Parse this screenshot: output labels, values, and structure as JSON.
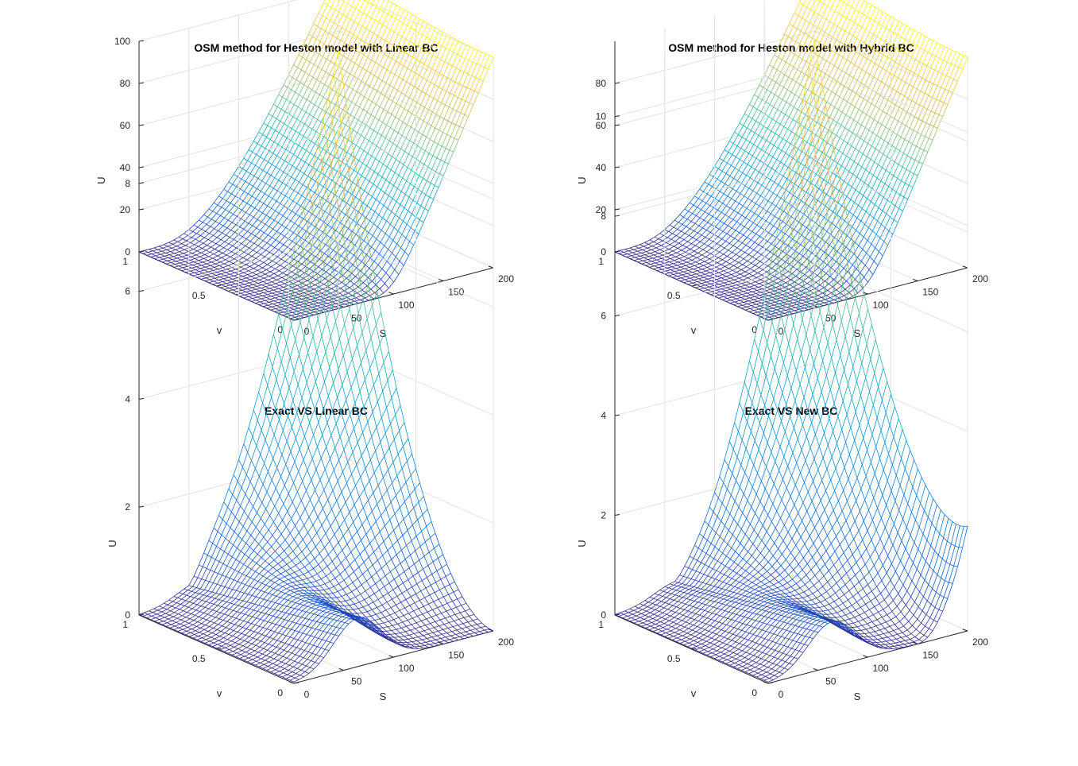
{
  "chart_data": [
    {
      "type": "surface",
      "title": "OSM method for Heston model with Linear BC",
      "xlabel": "S",
      "ylabel": "v",
      "zlabel": "U",
      "xlim": [
        0,
        200
      ],
      "ylim": [
        0,
        1
      ],
      "zlim": [
        0,
        100
      ],
      "xticks": [
        "0",
        "50",
        "100",
        "150",
        "200"
      ],
      "yticks": [
        "0",
        "0.5",
        "1"
      ],
      "zticks": [
        "0",
        "20",
        "40",
        "60",
        "80",
        "100"
      ],
      "z_max": 100,
      "z_shape": "price",
      "strike": 100,
      "grid": true,
      "colormap": "parula"
    },
    {
      "type": "surface",
      "title": "OSM method for Heston model with Hybrid BC",
      "xlabel": "S",
      "ylabel": "v",
      "zlabel": "U",
      "xlim": [
        0,
        200
      ],
      "ylim": [
        0,
        1
      ],
      "zlim": [
        0,
        100
      ],
      "xticks": [
        "0",
        "50",
        "100",
        "150",
        "200"
      ],
      "yticks": [
        "0",
        "0.5",
        "1"
      ],
      "zticks": [
        "0",
        "20",
        "40",
        "60",
        "80"
      ],
      "z_max": 100,
      "z_shape": "price",
      "strike": 100,
      "grid": true,
      "colormap": "parula"
    },
    {
      "type": "surface",
      "title": "Exact VS Linear BC",
      "xlabel": "S",
      "ylabel": "v",
      "zlabel": "U",
      "xlim": [
        0,
        200
      ],
      "ylim": [
        0,
        1
      ],
      "zlim": [
        0,
        10
      ],
      "xticks": [
        "0",
        "50",
        "100",
        "150",
        "200"
      ],
      "yticks": [
        "0",
        "0.5",
        "1"
      ],
      "zticks": [
        "0",
        "2",
        "4",
        "6",
        "8"
      ],
      "z_max": 9.5,
      "z_shape": "diff_linear",
      "grid": true,
      "colormap": "parula"
    },
    {
      "type": "surface",
      "title": "Exact VS New BC",
      "xlabel": "S",
      "ylabel": "v",
      "zlabel": "U",
      "xlim": [
        0,
        200
      ],
      "ylim": [
        0,
        1
      ],
      "zlim": [
        0,
        11
      ],
      "xticks": [
        "0",
        "50",
        "100",
        "150",
        "200"
      ],
      "yticks": [
        "0",
        "0.5",
        "1"
      ],
      "zticks": [
        "0",
        "2",
        "4",
        "6",
        "8",
        "10"
      ],
      "z_max": 10.5,
      "z_shape": "diff_new",
      "grid": true,
      "colormap": "parula"
    }
  ]
}
